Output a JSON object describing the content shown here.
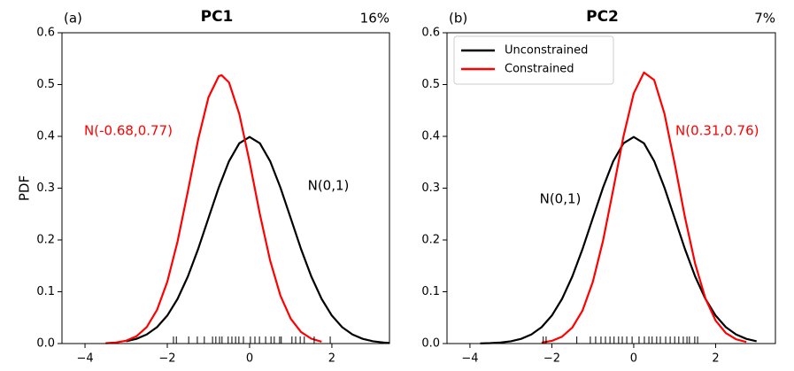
{
  "chart_data": [
    {
      "type": "line",
      "title": "PC1",
      "panel_label": "(a)",
      "percent_label": "16%",
      "ylabel": "PDF",
      "xlim": [
        -4.56,
        3.4
      ],
      "ylim": [
        0,
        0.6
      ],
      "xticks": [
        {
          "value": -4,
          "label": "−4"
        },
        {
          "value": -2,
          "label": "−2"
        },
        0,
        2
      ],
      "yticks": [
        {
          "value": 0,
          "label": "0.0"
        },
        0.1,
        0.2,
        0.3,
        0.4,
        0.5,
        0.6
      ],
      "series": [
        {
          "color": "black",
          "x": [
            -3.0,
            -2.75,
            -2.5,
            -2.25,
            -2.0,
            -1.75,
            -1.5,
            -1.25,
            -1.0,
            -0.75,
            -0.5,
            -0.25,
            0,
            0.25,
            0.5,
            0.75,
            1.0,
            1.25,
            1.5,
            1.75,
            2.0,
            2.25,
            2.5,
            2.75,
            3.0,
            3.25,
            3.4
          ],
          "values": [
            0.0044,
            0.0091,
            0.0175,
            0.0317,
            0.054,
            0.0863,
            0.1295,
            0.1826,
            0.242,
            0.3011,
            0.3521,
            0.3867,
            0.3989,
            0.3867,
            0.3521,
            0.3011,
            0.242,
            0.1826,
            0.1295,
            0.0863,
            0.054,
            0.0317,
            0.0175,
            0.0091,
            0.0044,
            0.002,
            0.0012
          ]
        },
        {
          "color": "red",
          "x": [
            -3.5,
            -3.25,
            -3.0,
            -2.75,
            -2.5,
            -2.25,
            -2.0,
            -1.75,
            -1.5,
            -1.25,
            -1.0,
            -0.75,
            -0.68,
            -0.5,
            -0.25,
            0,
            0.25,
            0.5,
            0.75,
            1.0,
            1.25,
            1.5,
            1.75
          ],
          "values": [
            0.0006,
            0.002,
            0.0055,
            0.014,
            0.0317,
            0.0648,
            0.1192,
            0.1972,
            0.2939,
            0.394,
            0.4752,
            0.516,
            0.5181,
            0.5041,
            0.4433,
            0.3508,
            0.2498,
            0.1601,
            0.0924,
            0.048,
            0.0224,
            0.0094,
            0.0036
          ]
        }
      ],
      "rug": [
        -1.85,
        -1.78,
        -1.48,
        -1.27,
        -1.1,
        -0.9,
        -0.82,
        -0.73,
        -0.67,
        -0.52,
        -0.43,
        -0.34,
        -0.26,
        -0.15,
        0.02,
        0.13,
        0.24,
        0.39,
        0.52,
        0.6,
        0.73,
        0.77,
        1.03,
        1.12,
        1.23,
        1.33,
        1.57,
        1.96
      ],
      "annotations": [
        {
          "text": "N(-0.68,0.77)",
          "color": "red"
        },
        {
          "text": "N(0,1)",
          "color": "black"
        }
      ]
    },
    {
      "type": "line",
      "title": "PC2",
      "panel_label": "(b)",
      "percent_label": "7%",
      "legend": "upper left",
      "xlim": [
        -4.56,
        3.46
      ],
      "ylim": [
        0,
        0.6
      ],
      "xticks": [
        {
          "value": -4,
          "label": "−4"
        },
        {
          "value": -2,
          "label": "−2"
        },
        0,
        2
      ],
      "yticks": [
        {
          "value": 0,
          "label": "0.0"
        },
        0.1,
        0.2,
        0.3,
        0.4,
        0.5,
        0.6
      ],
      "series": [
        {
          "name": "Unconstrained",
          "color": "black",
          "x": [
            -3.75,
            -3.5,
            -3.25,
            -3.0,
            -2.75,
            -2.5,
            -2.25,
            -2.0,
            -1.75,
            -1.5,
            -1.25,
            -1.0,
            -0.75,
            -0.5,
            -0.25,
            0,
            0.25,
            0.5,
            0.75,
            1.0,
            1.25,
            1.5,
            1.75,
            2.0,
            2.25,
            2.5,
            2.75,
            3.0
          ],
          "values": [
            0.00035,
            0.00087,
            0.002,
            0.0044,
            0.0091,
            0.0175,
            0.0317,
            0.054,
            0.0863,
            0.1295,
            0.1826,
            0.242,
            0.3011,
            0.3521,
            0.3867,
            0.3989,
            0.3867,
            0.3521,
            0.3011,
            0.242,
            0.1826,
            0.1295,
            0.0863,
            0.054,
            0.0317,
            0.0175,
            0.0091,
            0.0044
          ]
        },
        {
          "name": "Constrained",
          "color": "red",
          "x": [
            -2.25,
            -2.0,
            -1.75,
            -1.5,
            -1.25,
            -1.0,
            -0.75,
            -0.5,
            -0.25,
            0,
            0.25,
            0.5,
            0.75,
            1.0,
            1.25,
            1.5,
            1.75,
            2.0,
            2.25,
            2.5,
            2.75
          ],
          "values": [
            0.0018,
            0.0052,
            0.0133,
            0.0308,
            0.0638,
            0.1188,
            0.1984,
            0.2975,
            0.4001,
            0.483,
            0.5233,
            0.5087,
            0.4439,
            0.3476,
            0.2442,
            0.1541,
            0.0872,
            0.0443,
            0.0202,
            0.0083,
            0.003
          ]
        }
      ],
      "rug": [
        -2.21,
        -2.14,
        -1.39,
        -1.06,
        -0.93,
        -0.8,
        -0.69,
        -0.58,
        -0.48,
        -0.37,
        -0.28,
        -0.17,
        -0.04,
        0.13,
        0.26,
        0.37,
        0.45,
        0.56,
        0.65,
        0.78,
        0.89,
        1.0,
        1.1,
        1.21,
        1.3,
        1.36,
        1.49,
        1.56
      ],
      "annotations": [
        {
          "text": "N(0.31,0.76)",
          "color": "red"
        },
        {
          "text": "N(0,1)",
          "color": "black"
        }
      ]
    }
  ]
}
